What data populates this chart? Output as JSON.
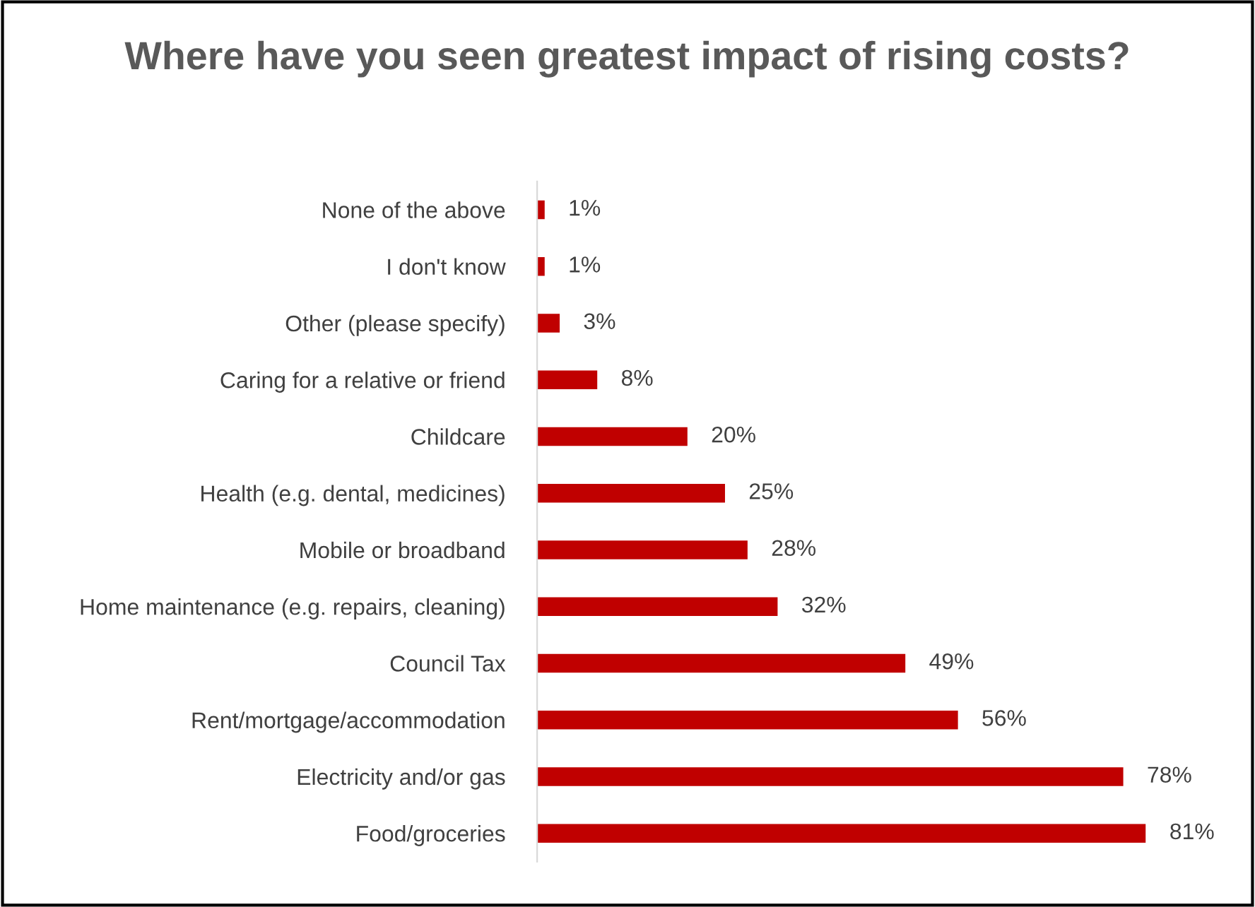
{
  "chart_data": {
    "type": "bar",
    "orientation": "horizontal",
    "title": "Where have you seen greatest impact of rising costs?",
    "categories": [
      "None of the above",
      "I don't know",
      "Other (please specify)",
      "Caring for a relative or friend",
      "Childcare",
      "Health (e.g. dental, medicines)",
      "Mobile or broadband",
      "Home maintenance (e.g. repairs, cleaning)",
      "Council Tax",
      "Rent/mortgage/accommodation",
      "Electricity and/or gas",
      "Food/groceries"
    ],
    "values": [
      1,
      1,
      3,
      8,
      20,
      25,
      28,
      32,
      49,
      56,
      78,
      81
    ],
    "value_labels": [
      "1%",
      "1%",
      "3%",
      "8%",
      "20%",
      "25%",
      "28%",
      "32%",
      "49%",
      "56%",
      "78%",
      "81%"
    ],
    "color": "#c00000",
    "tick_labels": "y",
    "grid": false,
    "legend": false
  }
}
